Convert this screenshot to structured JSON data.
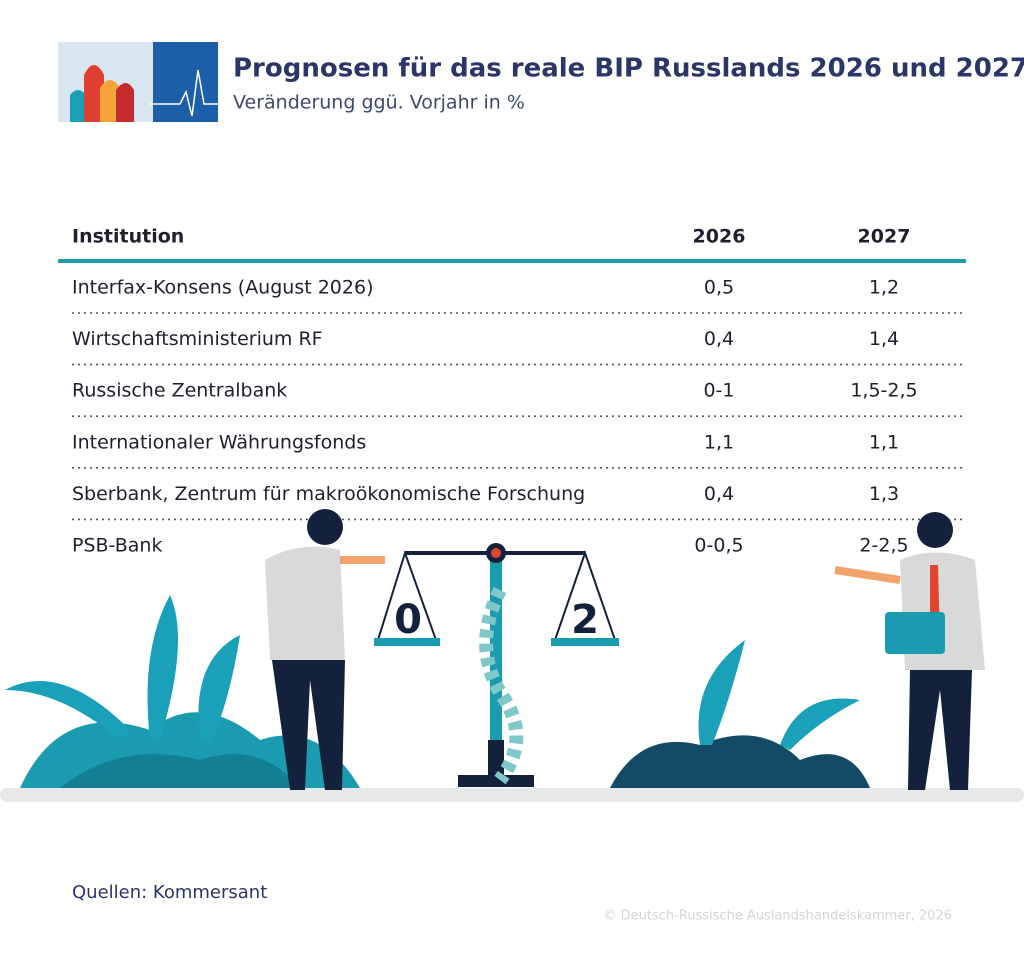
{
  "header": {
    "title": "Prognosen für das reale BIP Russlands 2026 und 2027",
    "subtitle": "Veränderung ggü. Vorjahr in %"
  },
  "table": {
    "columns": [
      "Institution",
      "2026",
      "2027"
    ],
    "rows": [
      [
        "Interfax-Konsens (August 2026)",
        "0,5",
        "1,2"
      ],
      [
        "Wirtschaftsministerium RF",
        "0,4",
        "1,4"
      ],
      [
        "Russische Zentralbank",
        "0-1",
        "1,5-2,5"
      ],
      [
        "Internationaler Währungsfonds",
        "1,1",
        "1,1"
      ],
      [
        "Sberbank, Zentrum für makroökonomische Forschung",
        "0,4",
        "1,3"
      ],
      [
        "PSB-Bank",
        "0-0,5",
        "2-2,5"
      ]
    ]
  },
  "illustration": {
    "scale_left": "0",
    "scale_right": "2"
  },
  "footer": {
    "source": "Quellen: Kommersant",
    "copyright": "© Deutsch-Russische Auslandshandelskammer, 2026"
  }
}
